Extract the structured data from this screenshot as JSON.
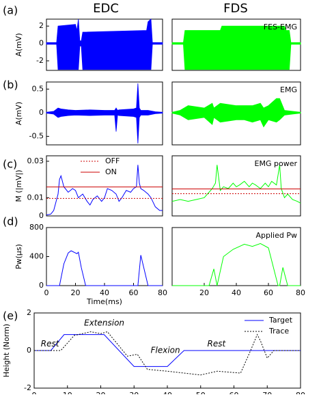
{
  "column_titles": [
    "EDC",
    "FDS"
  ],
  "panel_labels": [
    "(a)",
    "(b)",
    "(c)",
    "(d)",
    "(e)"
  ],
  "chart_data": [
    {
      "type": "band",
      "ylabel": "A(mV)",
      "xlim": [
        0,
        80
      ],
      "ylim": [
        -3.1,
        2.8
      ],
      "yticks": [
        -2,
        0,
        2
      ],
      "series": [
        {
          "color": "#0000ff",
          "x": [
            0,
            7,
            8,
            20,
            21,
            22,
            23,
            24,
            25,
            69,
            70,
            72,
            73,
            80
          ],
          "upper": [
            0.1,
            0.1,
            2,
            2.2,
            1.5,
            2.8,
            0.3,
            0.3,
            1.3,
            1.5,
            2.5,
            2.8,
            0.1,
            0.1
          ],
          "lower": [
            -0.1,
            -0.1,
            -3,
            -3,
            -3,
            -3,
            -0.3,
            -0.3,
            -3,
            -3,
            -3,
            -3,
            -0.1,
            -0.1
          ]
        }
      ]
    },
    {
      "type": "band",
      "annotation": "FES-EMG",
      "xlim": [
        0,
        80
      ],
      "ylim": [
        -3.1,
        2.8
      ],
      "series": [
        {
          "color": "#00ff00",
          "x": [
            0,
            7,
            8,
            30,
            31,
            70,
            71,
            73,
            74,
            80
          ],
          "upper": [
            0.1,
            0.1,
            1.5,
            1.5,
            2,
            2,
            1.5,
            1.5,
            0.1,
            0.1
          ],
          "lower": [
            -0.1,
            -0.1,
            -3,
            -3,
            -3,
            -3,
            -3,
            -3,
            -0.1,
            -0.1
          ]
        }
      ]
    },
    {
      "type": "band",
      "ylabel": "A(mV)",
      "xlim": [
        0,
        80
      ],
      "ylim": [
        -0.68,
        0.65
      ],
      "yticks": [
        -0.5,
        0,
        0.5
      ],
      "series": [
        {
          "color": "#0000ff",
          "x": [
            0,
            5,
            8,
            10,
            15,
            20,
            30,
            40,
            47,
            48,
            49,
            50,
            60,
            62,
            63,
            64,
            65,
            70,
            75,
            80
          ],
          "upper": [
            0.01,
            0.03,
            0.1,
            0.08,
            0.06,
            0.05,
            0.06,
            0.05,
            0.05,
            0.1,
            0.05,
            0.06,
            0.08,
            0.1,
            0.62,
            0.1,
            0.05,
            0.05,
            0.02,
            0.01
          ],
          "lower": [
            -0.01,
            -0.03,
            -0.1,
            -0.08,
            -0.06,
            -0.05,
            -0.06,
            -0.05,
            -0.05,
            -0.4,
            -0.05,
            -0.06,
            -0.08,
            -0.1,
            -0.65,
            -0.1,
            -0.05,
            -0.05,
            -0.02,
            -0.01
          ]
        }
      ]
    },
    {
      "type": "band",
      "annotation": "EMG",
      "xlim": [
        0,
        80
      ],
      "ylim": [
        -0.68,
        0.65
      ],
      "series": [
        {
          "color": "#00ff00",
          "x": [
            0,
            5,
            10,
            20,
            25,
            26,
            30,
            40,
            45,
            50,
            55,
            57,
            60,
            65,
            67,
            70,
            75,
            80
          ],
          "upper": [
            0.01,
            0.05,
            0.15,
            0.1,
            0.2,
            0.1,
            0.2,
            0.15,
            0.15,
            0.15,
            0.2,
            0.1,
            0.15,
            0.3,
            0.3,
            0.05,
            0.03,
            0.01
          ],
          "lower": [
            -0.01,
            -0.05,
            -0.15,
            -0.1,
            -0.25,
            -0.1,
            -0.2,
            -0.15,
            -0.15,
            -0.2,
            -0.15,
            -0.3,
            -0.15,
            -0.2,
            -0.15,
            -0.05,
            -0.03,
            -0.01
          ]
        }
      ]
    },
    {
      "type": "line",
      "ylabel": "M (|mV|)",
      "xlim": [
        0,
        80
      ],
      "ylim": [
        0,
        0.033
      ],
      "yticks": [
        0,
        0.01,
        0.03
      ],
      "legend": true,
      "series": [
        {
          "color": "#0000ff",
          "x": [
            0,
            3,
            5,
            8,
            9,
            10,
            12,
            15,
            18,
            20,
            22,
            25,
            28,
            30,
            32,
            35,
            38,
            40,
            42,
            45,
            48,
            50,
            52,
            55,
            58,
            60,
            62,
            63,
            64,
            65,
            67,
            70,
            72,
            75,
            78,
            80
          ],
          "values": [
            0.0005,
            0.001,
            0.003,
            0.012,
            0.02,
            0.022,
            0.016,
            0.013,
            0.015,
            0.014,
            0.01,
            0.012,
            0.008,
            0.006,
            0.009,
            0.011,
            0.008,
            0.01,
            0.015,
            0.014,
            0.012,
            0.008,
            0.01,
            0.014,
            0.013,
            0.015,
            0.016,
            0.028,
            0.018,
            0.015,
            0.014,
            0.012,
            0.01,
            0.005,
            0.003,
            0.003
          ]
        },
        {
          "name": "OFF",
          "color": "#cc0000",
          "dash": true,
          "x": [
            0,
            80
          ],
          "values": [
            0.0096,
            0.0096
          ]
        },
        {
          "name": "ON",
          "color": "#cc0000",
          "x": [
            0,
            80
          ],
          "values": [
            0.0159,
            0.0159
          ]
        }
      ]
    },
    {
      "type": "line",
      "annotation": "EMG power",
      "xlim": [
        0,
        80
      ],
      "ylim": [
        0,
        0.033
      ],
      "series": [
        {
          "color": "#00ff00",
          "x": [
            0,
            5,
            10,
            15,
            20,
            22,
            25,
            27,
            28,
            30,
            32,
            35,
            38,
            40,
            42,
            45,
            48,
            50,
            52,
            55,
            58,
            60,
            62,
            65,
            67,
            68,
            70,
            72,
            75,
            78,
            80
          ],
          "values": [
            0.008,
            0.009,
            0.008,
            0.009,
            0.01,
            0.012,
            0.015,
            0.018,
            0.028,
            0.014,
            0.016,
            0.015,
            0.018,
            0.016,
            0.017,
            0.019,
            0.016,
            0.018,
            0.017,
            0.015,
            0.018,
            0.016,
            0.019,
            0.017,
            0.028,
            0.015,
            0.01,
            0.012,
            0.009,
            0.008,
            0.007
          ]
        },
        {
          "color": "#cc0000",
          "dash": true,
          "x": [
            0,
            80
          ],
          "values": [
            0.0122,
            0.0122
          ]
        },
        {
          "color": "#cc0000",
          "x": [
            0,
            80
          ],
          "values": [
            0.0148,
            0.0148
          ]
        }
      ]
    },
    {
      "type": "line",
      "ylabel": "Pw(µs)",
      "xlabel": "Time(ms)",
      "xlim": [
        0,
        80
      ],
      "ylim": [
        0,
        800
      ],
      "yticks": [
        0,
        400,
        800
      ],
      "xticks": [
        0,
        20,
        40,
        60,
        80
      ],
      "series": [
        {
          "color": "#0000ff",
          "x": [
            0,
            9,
            12,
            15,
            17,
            20,
            21,
            22,
            24,
            27,
            63,
            65,
            70,
            80
          ],
          "values": [
            0,
            0,
            300,
            450,
            480,
            450,
            440,
            460,
            250,
            0,
            0,
            420,
            0,
            0
          ]
        }
      ]
    },
    {
      "type": "line",
      "annotation": "Applied Pw",
      "xlim": [
        0,
        80
      ],
      "ylim": [
        0,
        800
      ],
      "xticks": [
        20,
        40,
        60,
        80
      ],
      "series": [
        {
          "color": "#00ff00",
          "x": [
            0,
            23,
            26,
            28,
            32,
            38,
            45,
            50,
            55,
            60,
            66,
            67,
            69,
            72,
            80
          ],
          "values": [
            0,
            0,
            230,
            0,
            400,
            500,
            570,
            540,
            580,
            520,
            0,
            0,
            250,
            0,
            0
          ]
        }
      ]
    },
    {
      "type": "line",
      "ylabel": "Height (Norm)",
      "xlim": [
        0,
        80
      ],
      "ylim": [
        -2,
        2
      ],
      "yticks": [
        -2,
        0,
        2
      ],
      "xticks": [
        0,
        10,
        20,
        30,
        40,
        50,
        60,
        70,
        80
      ],
      "legend": true,
      "annotations": [
        "Rest",
        "Extension",
        "Flexion",
        "Rest"
      ],
      "series": [
        {
          "name": "Target",
          "color": "#0000ff",
          "x": [
            0,
            5,
            9,
            21,
            30,
            40,
            45,
            80
          ],
          "values": [
            0,
            0,
            0.85,
            0.85,
            -0.85,
            -0.85,
            0,
            0
          ]
        },
        {
          "name": "Trace",
          "color": "#000000",
          "dash": true,
          "x": [
            0,
            8,
            12,
            17,
            20,
            22,
            28,
            31,
            34,
            40,
            50,
            55,
            62,
            65,
            67,
            68,
            70,
            72,
            80
          ],
          "values": [
            0,
            0,
            0.8,
            1.0,
            0.9,
            1.0,
            -0.3,
            -0.2,
            -1.0,
            -1.1,
            -1.3,
            -1.1,
            -1.2,
            0,
            0.85,
            0.5,
            -0.4,
            0,
            0
          ]
        }
      ]
    }
  ]
}
